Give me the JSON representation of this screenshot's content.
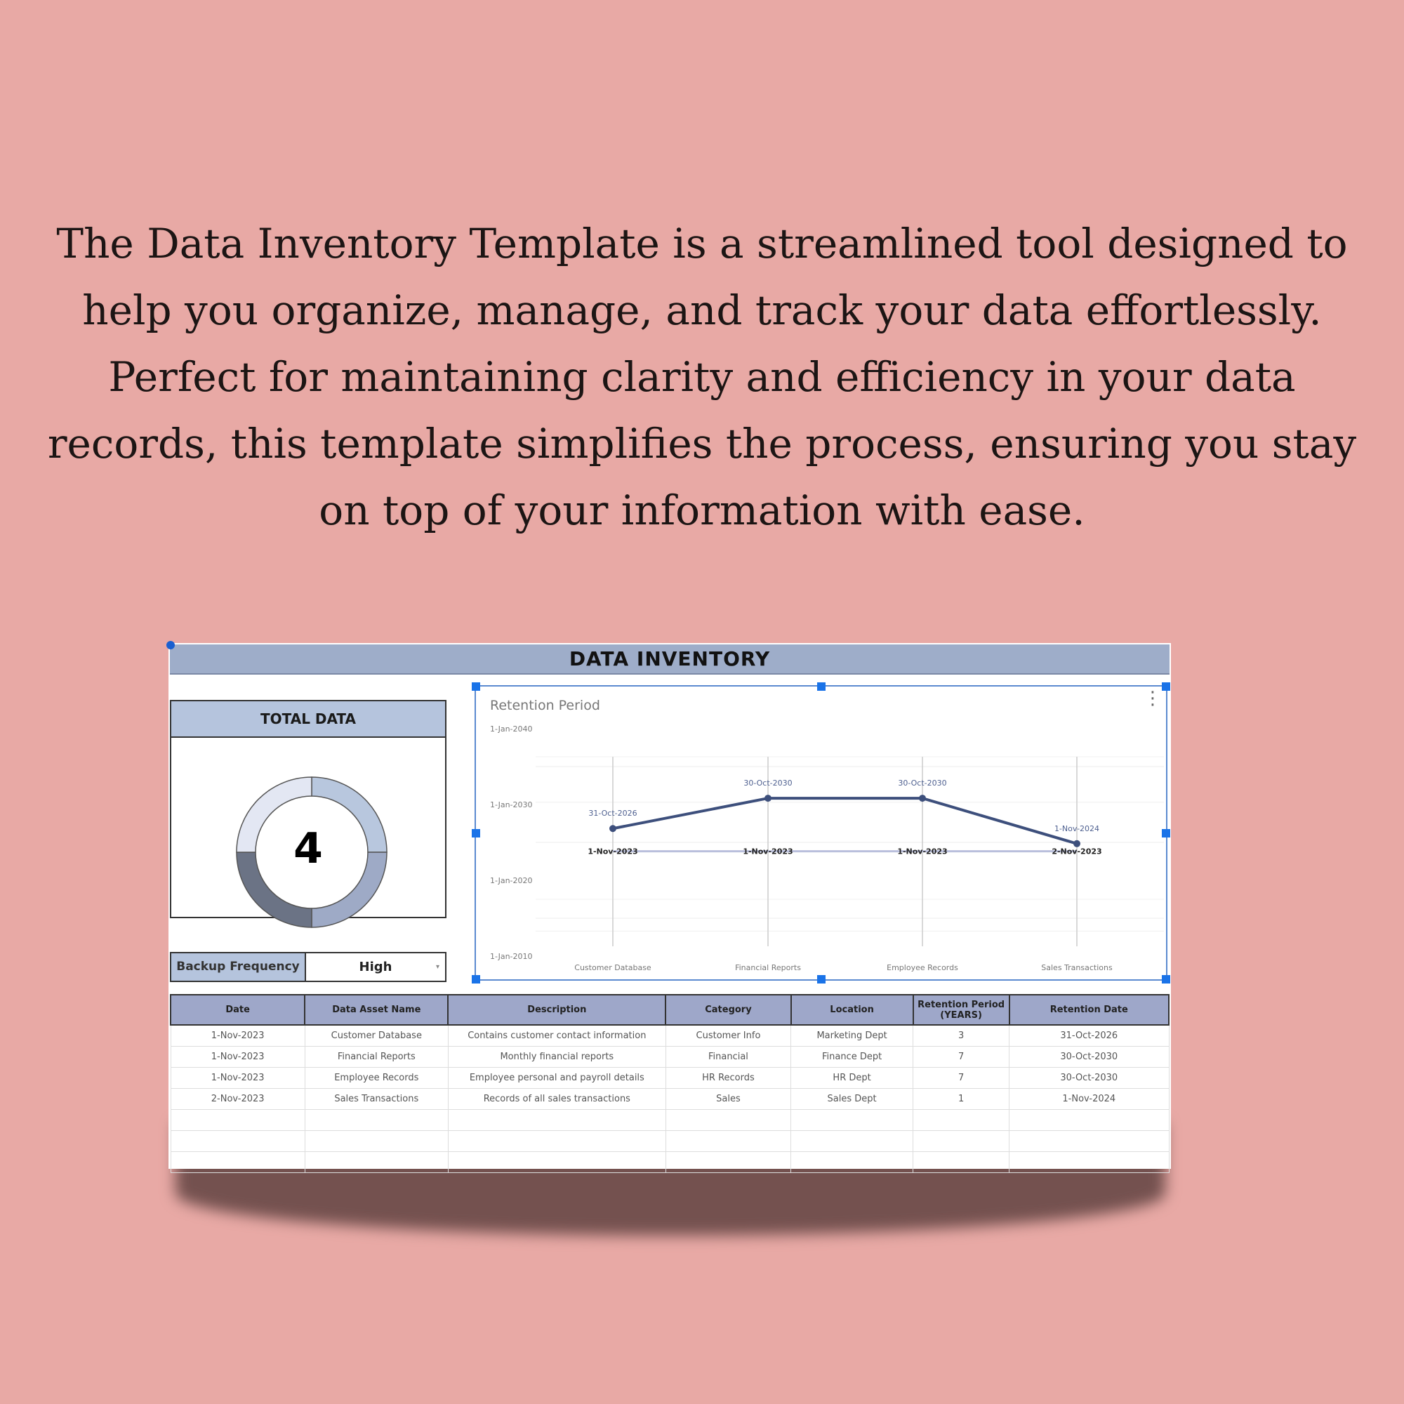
{
  "intro_text": "The Data Inventory Template is a streamlined tool designed to help you organize, manage, and track your data effortlessly. Perfect for maintaining clarity and efficiency in your data records, this template simplifies the process, ensuring you stay on top of your information with ease.",
  "sheet": {
    "title": "DATA INVENTORY",
    "total_data": {
      "label": "TOTAL DATA",
      "value": "4",
      "ring_colors": [
        "#b8c7de",
        "#9eaac6",
        "#6b7385",
        "#e3e7f3"
      ]
    },
    "backup": {
      "label": "Backup Frequency",
      "value": "High",
      "icon": "dropdown-caret-icon"
    },
    "chart_menu_icon": "kebab-menu-icon"
  },
  "chart_data": {
    "type": "line",
    "title": "Retention Period",
    "categories": [
      "Customer Database",
      "Financial Reports",
      "Employee Records",
      "Sales Transactions"
    ],
    "series": [
      {
        "values": [
          "2023-11-01",
          "2023-11-01",
          "2023-11-01",
          "2023-11-02"
        ],
        "labels": [
          "1-Nov-2023",
          "1-Nov-2023",
          "1-Nov-2023",
          "2-Nov-2023"
        ],
        "color": "#b9bfdc"
      },
      {
        "values": [
          "2026-10-31",
          "2030-10-30",
          "2030-10-30",
          "2024-11-01"
        ],
        "labels": [
          "31-Oct-2026",
          "30-Oct-2030",
          "30-Oct-2030",
          "1-Nov-2024"
        ],
        "color": "#3d4f7c"
      }
    ],
    "y_ticks": [
      "1-Jan-2040",
      "1-Jan-2030",
      "1-Jan-2020",
      "1-Jan-2010"
    ],
    "ylim": [
      "2010-01-01",
      "2040-01-01"
    ],
    "grid": true
  },
  "table": {
    "headers": [
      "Date",
      "Data Asset Name",
      "Description",
      "Category",
      "Location",
      "Retention Period (YEARS)",
      "Retention Date"
    ],
    "rows": [
      [
        "1-Nov-2023",
        "Customer Database",
        "Contains customer contact information",
        "Customer Info",
        "Marketing Dept",
        "3",
        "31-Oct-2026"
      ],
      [
        "1-Nov-2023",
        "Financial Reports",
        "Monthly financial reports",
        "Financial",
        "Finance Dept",
        "7",
        "30-Oct-2030"
      ],
      [
        "1-Nov-2023",
        "Employee Records",
        "Employee personal and payroll details",
        "HR Records",
        "HR Dept",
        "7",
        "30-Oct-2030"
      ],
      [
        "2-Nov-2023",
        "Sales Transactions",
        "Records of all sales transactions",
        "Sales",
        "Sales Dept",
        "1",
        "1-Nov-2024"
      ]
    ],
    "empty_rows": 3
  }
}
